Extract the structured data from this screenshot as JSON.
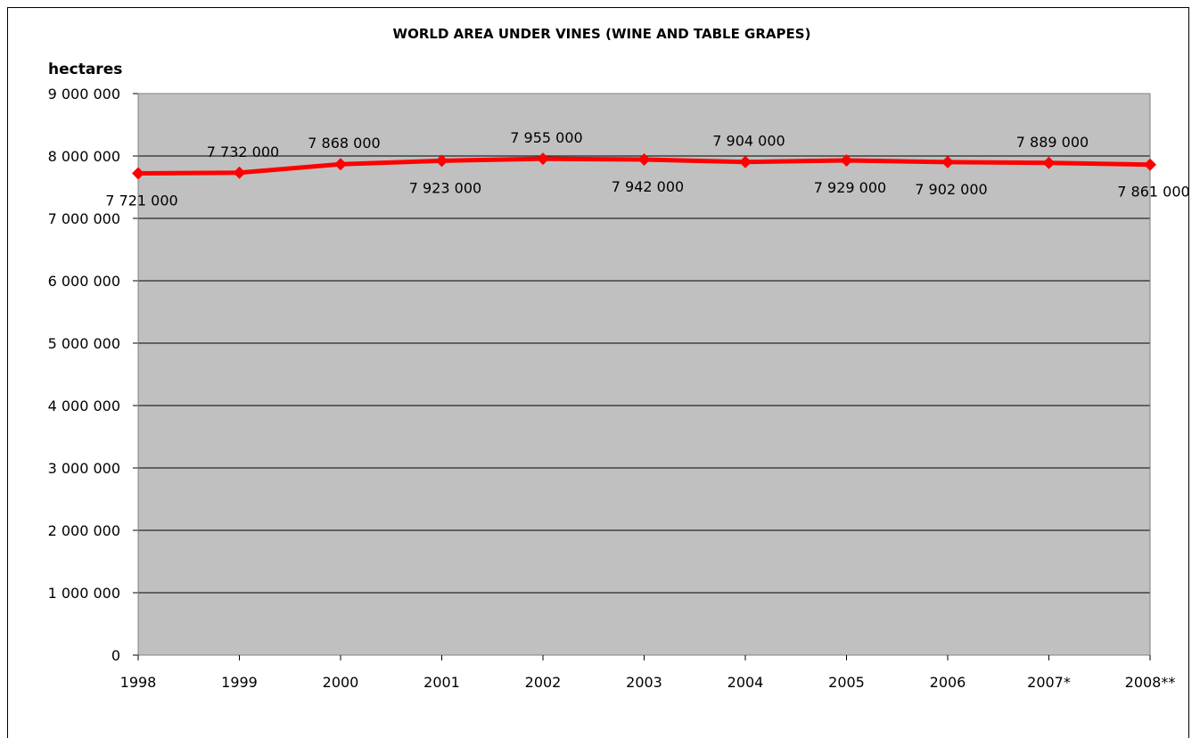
{
  "chart_data": {
    "type": "line",
    "title": "WORLD AREA UNDER VINES (WINE AND TABLE GRAPES)",
    "ylabel": "hectares",
    "xlabel": "",
    "categories": [
      "1998",
      "1999",
      "2000",
      "2001",
      "2002",
      "2003",
      "2004",
      "2005",
      "2006",
      "2007*",
      "2008**"
    ],
    "series": [
      {
        "values": [
          7721000,
          7732000,
          7868000,
          7923000,
          7955000,
          7942000,
          7904000,
          7929000,
          7902000,
          7889000,
          7861000
        ],
        "labels": [
          "7 721 000",
          "7 732 000",
          "7 868 000",
          "7 923 000",
          "7 955 000",
          "7 942 000",
          "7 904 000",
          "7 929 000",
          "7 902 000",
          "7 889 000",
          "7 861 000"
        ],
        "label_pos": [
          "below",
          "above",
          "above",
          "below",
          "above",
          "below",
          "above",
          "below",
          "below",
          "above",
          "below"
        ],
        "color": "#ff0000"
      }
    ],
    "ylim": [
      0,
      9000000
    ],
    "yticks": [
      0,
      1000000,
      2000000,
      3000000,
      4000000,
      5000000,
      6000000,
      7000000,
      8000000,
      9000000
    ],
    "ytick_labels": [
      "0",
      "1 000 000",
      "2 000 000",
      "3 000 000",
      "4 000 000",
      "5 000 000",
      "6 000 000",
      "7 000 000",
      "8 000 000",
      "9 000 000"
    ],
    "grid": true,
    "plot_background": "#c0c0c0",
    "legend": "none"
  }
}
